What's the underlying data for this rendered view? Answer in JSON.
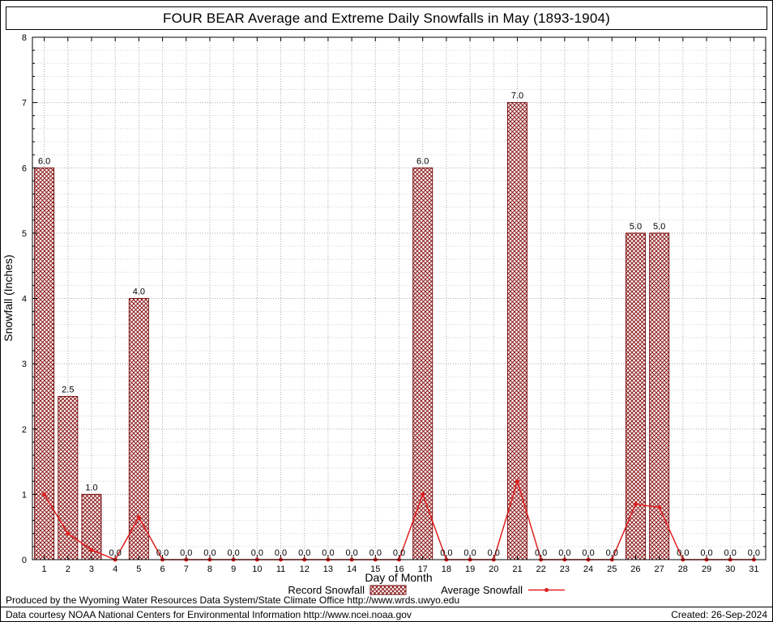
{
  "chart_data": {
    "type": "bar+line",
    "title": "FOUR BEAR Average and Extreme Daily Snowfalls in May (1893-1904)",
    "xlabel": "Day of Month",
    "ylabel": "Snowfall (Inches)",
    "ylim": [
      0,
      8
    ],
    "y_major_step": 1,
    "y_minor_step": 0.2,
    "grid": true,
    "legend_position": "bottom",
    "x": [
      1,
      2,
      3,
      4,
      5,
      6,
      7,
      8,
      9,
      10,
      11,
      12,
      13,
      14,
      15,
      16,
      17,
      18,
      19,
      20,
      21,
      22,
      23,
      24,
      25,
      26,
      27,
      28,
      29,
      30,
      31
    ],
    "series": [
      {
        "name": "Record Snowfall",
        "type": "bar",
        "values": [
          6.0,
          2.5,
          1.0,
          0.0,
          4.0,
          0.0,
          0.0,
          0.0,
          0.0,
          0.0,
          0.0,
          0.0,
          0.0,
          0.0,
          0.0,
          0.0,
          6.0,
          0.0,
          0.0,
          0.0,
          7.0,
          0.0,
          0.0,
          0.0,
          0.0,
          5.0,
          5.0,
          0.0,
          0.0,
          0.0,
          0.0
        ],
        "labels": [
          "6.0",
          "2.5",
          "1.0",
          "0.0",
          "4.0",
          "0.0",
          "0.0",
          "0.0",
          "0.0",
          "0.0",
          "0.0",
          "0.0",
          "0.0",
          "0.0",
          "0.0",
          "0.0",
          "6.0",
          "0.0",
          "0.0",
          "0.0",
          "7.0",
          "0.0",
          "0.0",
          "0.0",
          "0.0",
          "5.0",
          "5.0",
          "0.0",
          "0.0",
          "0.0",
          "0.0"
        ]
      },
      {
        "name": "Average Snowfall",
        "type": "line",
        "values": [
          1.0,
          0.4,
          0.15,
          0.0,
          0.65,
          0.0,
          0.0,
          0.0,
          0.0,
          0.0,
          0.0,
          0.0,
          0.0,
          0.0,
          0.0,
          0.0,
          1.0,
          0.0,
          0.0,
          0.0,
          1.2,
          0.0,
          0.0,
          0.0,
          0.0,
          0.85,
          0.8,
          0.0,
          0.0,
          0.0,
          0.0
        ]
      }
    ]
  },
  "colors": {
    "bar_fill_hatch": "#8b1a1a",
    "bar_border": "#7a1010",
    "line": "#e02020",
    "grid_major": "#ababab",
    "grid_minor": "#d4d4d4",
    "axis": "#000000"
  },
  "footer": {
    "line1": "Produced by the Wyoming Water Resources Data System/State Climate Office http://www.wrds.uwyo.edu",
    "line2": "Data courtesy NOAA National Centers for Environmental Information http://www.ncei.noaa.gov",
    "created": "Created: 26-Sep-2024"
  }
}
